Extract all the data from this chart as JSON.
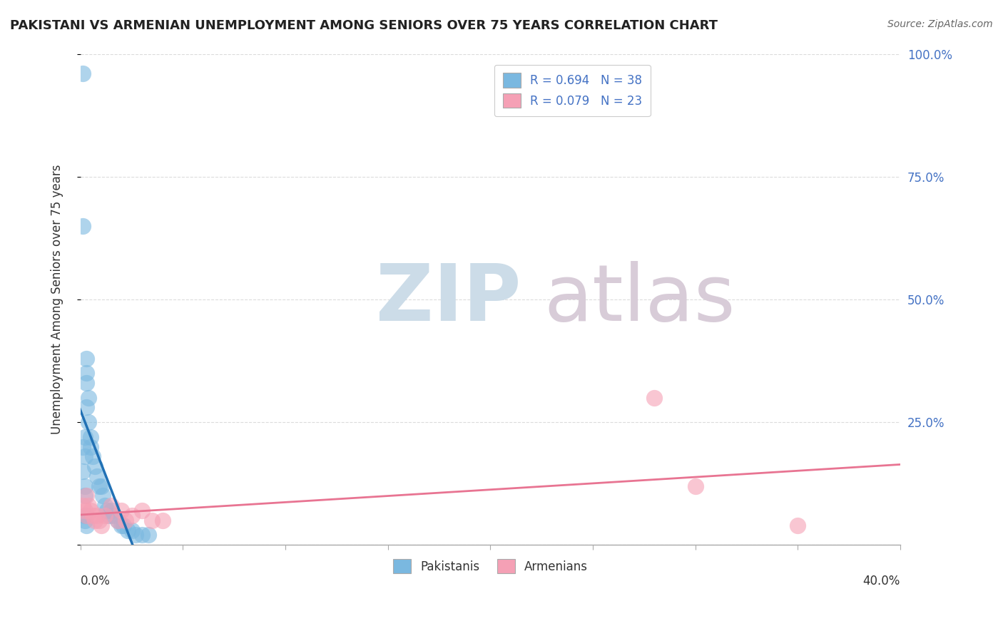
{
  "title": "PAKISTANI VS ARMENIAN UNEMPLOYMENT AMONG SENIORS OVER 75 YEARS CORRELATION CHART",
  "source": "Source: ZipAtlas.com",
  "ylabel": "Unemployment Among Seniors over 75 years",
  "y_ticks": [
    0.0,
    0.25,
    0.5,
    0.75,
    1.0
  ],
  "y_tick_labels": [
    "",
    "25.0%",
    "50.0%",
    "75.0%",
    "100.0%"
  ],
  "x_ticks": [
    0.0,
    0.05,
    0.1,
    0.15,
    0.2,
    0.25,
    0.3,
    0.35,
    0.4
  ],
  "xlim": [
    0.0,
    0.4
  ],
  "ylim": [
    0.0,
    1.0
  ],
  "legend_r_labels": [
    "R = 0.694   N = 38",
    "R = 0.079   N = 23"
  ],
  "legend_labels": [
    "Pakistanis",
    "Armenians"
  ],
  "pak_x": [
    0.001,
    0.001,
    0.001,
    0.002,
    0.002,
    0.002,
    0.002,
    0.003,
    0.003,
    0.003,
    0.003,
    0.004,
    0.004,
    0.005,
    0.005,
    0.006,
    0.007,
    0.008,
    0.009,
    0.01,
    0.011,
    0.012,
    0.013,
    0.014,
    0.015,
    0.016,
    0.018,
    0.02,
    0.021,
    0.023,
    0.025,
    0.027,
    0.03,
    0.033,
    0.001,
    0.002,
    0.002,
    0.003
  ],
  "pak_y": [
    0.96,
    0.2,
    0.15,
    0.22,
    0.18,
    0.12,
    0.1,
    0.38,
    0.35,
    0.33,
    0.28,
    0.3,
    0.25,
    0.22,
    0.2,
    0.18,
    0.16,
    0.14,
    0.12,
    0.12,
    0.1,
    0.08,
    0.07,
    0.06,
    0.07,
    0.06,
    0.05,
    0.04,
    0.04,
    0.03,
    0.03,
    0.02,
    0.02,
    0.02,
    0.65,
    0.06,
    0.05,
    0.04
  ],
  "arm_x": [
    0.001,
    0.002,
    0.003,
    0.003,
    0.004,
    0.005,
    0.006,
    0.007,
    0.008,
    0.009,
    0.01,
    0.012,
    0.015,
    0.018,
    0.02,
    0.022,
    0.025,
    0.03,
    0.035,
    0.04,
    0.28,
    0.3,
    0.35
  ],
  "arm_y": [
    0.08,
    0.07,
    0.1,
    0.06,
    0.08,
    0.07,
    0.06,
    0.05,
    0.06,
    0.05,
    0.04,
    0.06,
    0.08,
    0.05,
    0.07,
    0.05,
    0.06,
    0.07,
    0.05,
    0.05,
    0.3,
    0.12,
    0.04
  ],
  "blue_color": "#7ab8e0",
  "pink_color": "#f5a0b5",
  "blue_line_color": "#2171b5",
  "pink_line_color": "#e87492",
  "watermark_zip_color": "#ccdce8",
  "watermark_atlas_color": "#d8ccd8",
  "right_axis_color": "#4472c4",
  "title_color": "#222222",
  "background_color": "#ffffff",
  "grid_color": "#cccccc"
}
